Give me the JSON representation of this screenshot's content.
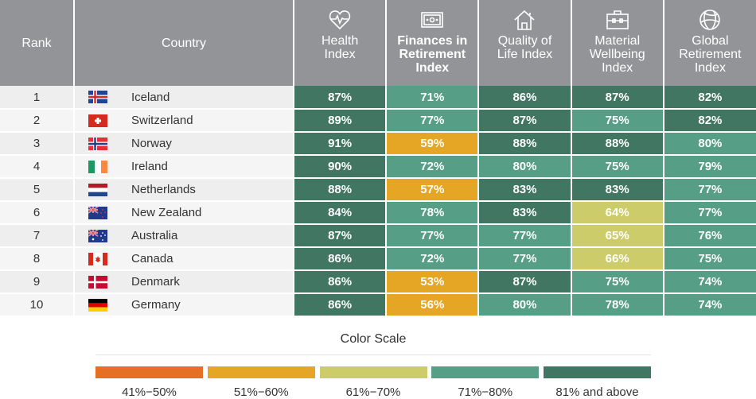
{
  "header": {
    "rank_label": "Rank",
    "country_label": "Country",
    "columns": [
      {
        "label_lines": [
          "Health",
          "Index"
        ],
        "icon": "heart-pulse-icon",
        "bold": false
      },
      {
        "label_lines": [
          "Finances in",
          "Retirement",
          "Index"
        ],
        "icon": "banknote-icon",
        "bold": true
      },
      {
        "label_lines": [
          "Quality of",
          "Life Index"
        ],
        "icon": "house-icon",
        "bold": false
      },
      {
        "label_lines": [
          "Material",
          "Wellbeing",
          "Index"
        ],
        "icon": "briefcase-icon",
        "bold": false
      },
      {
        "label_lines": [
          "Global",
          "Retirement",
          "Index"
        ],
        "icon": "globe-icon",
        "bold": false
      }
    ]
  },
  "rows": [
    {
      "rank": "1",
      "country": "Iceland",
      "flag": "iceland",
      "values": [
        "87%",
        "71%",
        "86%",
        "87%",
        "82%"
      ]
    },
    {
      "rank": "2",
      "country": "Switzerland",
      "flag": "switzerland",
      "values": [
        "89%",
        "77%",
        "87%",
        "75%",
        "82%"
      ]
    },
    {
      "rank": "3",
      "country": "Norway",
      "flag": "norway",
      "values": [
        "91%",
        "59%",
        "88%",
        "88%",
        "80%"
      ]
    },
    {
      "rank": "4",
      "country": "Ireland",
      "flag": "ireland",
      "values": [
        "90%",
        "72%",
        "80%",
        "75%",
        "79%"
      ]
    },
    {
      "rank": "5",
      "country": "Netherlands",
      "flag": "netherlands",
      "values": [
        "88%",
        "57%",
        "83%",
        "83%",
        "77%"
      ]
    },
    {
      "rank": "6",
      "country": "New Zealand",
      "flag": "new-zealand",
      "values": [
        "84%",
        "78%",
        "83%",
        "64%",
        "77%"
      ]
    },
    {
      "rank": "7",
      "country": "Australia",
      "flag": "australia",
      "values": [
        "87%",
        "77%",
        "77%",
        "65%",
        "76%"
      ]
    },
    {
      "rank": "8",
      "country": "Canada",
      "flag": "canada",
      "values": [
        "86%",
        "72%",
        "77%",
        "66%",
        "75%"
      ]
    },
    {
      "rank": "9",
      "country": "Denmark",
      "flag": "denmark",
      "values": [
        "86%",
        "53%",
        "87%",
        "75%",
        "74%"
      ]
    },
    {
      "rank": "10",
      "country": "Germany",
      "flag": "germany",
      "values": [
        "86%",
        "56%",
        "80%",
        "78%",
        "74%"
      ]
    }
  ],
  "legend": {
    "title": "Color Scale",
    "items": [
      {
        "label": "41%−50%",
        "color": "#e57025",
        "min": 41,
        "max": 50
      },
      {
        "label": "51%−60%",
        "color": "#e6a625",
        "min": 51,
        "max": 60
      },
      {
        "label": "61%−70%",
        "color": "#cccc6a",
        "min": 61,
        "max": 70
      },
      {
        "label": "71%−80%",
        "color": "#569e85",
        "min": 71,
        "max": 80
      },
      {
        "label": "81% and above",
        "color": "#417663",
        "min": 81,
        "max": 100
      }
    ]
  }
}
